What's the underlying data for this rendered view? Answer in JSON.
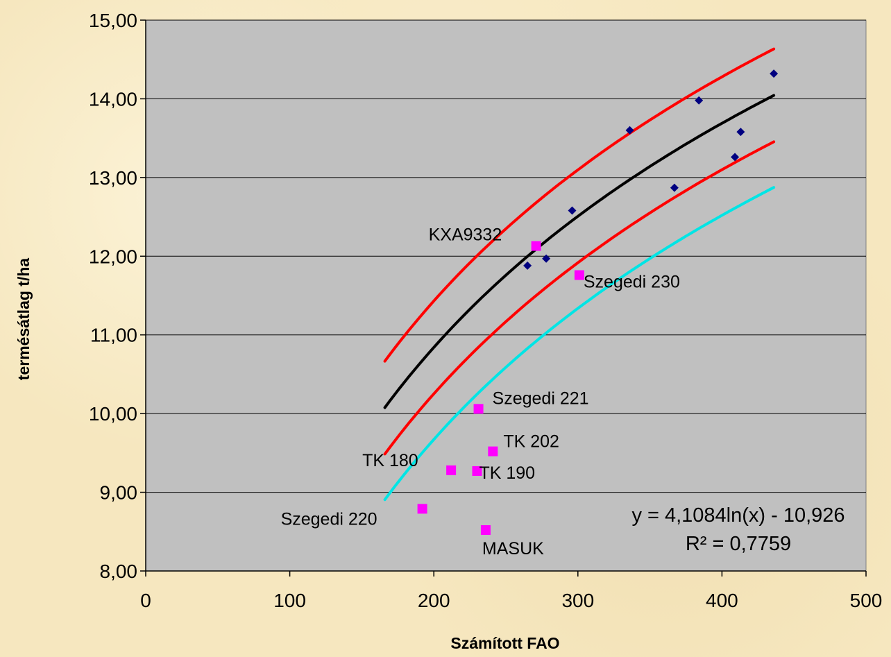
{
  "chart_data": {
    "type": "scatter",
    "xlabel": "Számított FAO",
    "ylabel": "termésátlag t/ha",
    "xlim": [
      0,
      500
    ],
    "ylim": [
      8,
      15
    ],
    "x_ticks": [
      "0",
      "100",
      "200",
      "300",
      "400",
      "500"
    ],
    "y_ticks": [
      "8,00",
      "9,00",
      "10,00",
      "11,00",
      "12,00",
      "13,00",
      "14,00",
      "15,00"
    ],
    "grid": "horizontal",
    "background": "#c0c0c0",
    "series": [
      {
        "marker": "diamond",
        "color": "#000080",
        "points": [
          {
            "x": 265,
            "y": 11.88
          },
          {
            "x": 278,
            "y": 11.97
          },
          {
            "x": 296,
            "y": 12.58
          },
          {
            "x": 336,
            "y": 13.6
          },
          {
            "x": 367,
            "y": 12.87
          },
          {
            "x": 384,
            "y": 13.98
          },
          {
            "x": 409,
            "y": 13.26
          },
          {
            "x": 413,
            "y": 13.58
          },
          {
            "x": 436,
            "y": 14.32
          }
        ]
      },
      {
        "marker": "square",
        "color": "#ff00ff",
        "points": [
          {
            "x": 271,
            "y": 12.13,
            "label": "KXA9332"
          },
          {
            "x": 301,
            "y": 11.76,
            "label": "Szegedi 230"
          },
          {
            "x": 231,
            "y": 10.06,
            "label": "Szegedi 221"
          },
          {
            "x": 241,
            "y": 9.52,
            "label": "TK 202"
          },
          {
            "x": 212,
            "y": 9.28,
            "label": "TK 180"
          },
          {
            "x": 230,
            "y": 9.27,
            "label": "TK 190"
          },
          {
            "x": 192,
            "y": 8.79,
            "label": "Szegedi 220"
          },
          {
            "x": 236,
            "y": 8.52,
            "label": "MASUK"
          }
        ]
      }
    ],
    "curves": [
      {
        "role": "trendline",
        "color": "#000000",
        "formula": "y = 4.1084*ln(x) - 10.926",
        "x_range": [
          166,
          436
        ],
        "offset": 0
      },
      {
        "role": "upper-band",
        "color": "#ff0000",
        "x_range": [
          166,
          436
        ],
        "offset": 0.59
      },
      {
        "role": "lower-band",
        "color": "#ff0000",
        "x_range": [
          166,
          436
        ],
        "offset": -0.59
      },
      {
        "role": "lower-band-2",
        "color": "#00e5e5",
        "x_range": [
          166,
          436
        ],
        "offset": -1.17
      }
    ],
    "annotations": {
      "equation": "y = 4,1084ln(x) - 10,926",
      "r_squared": "R² = 0,7759"
    }
  }
}
